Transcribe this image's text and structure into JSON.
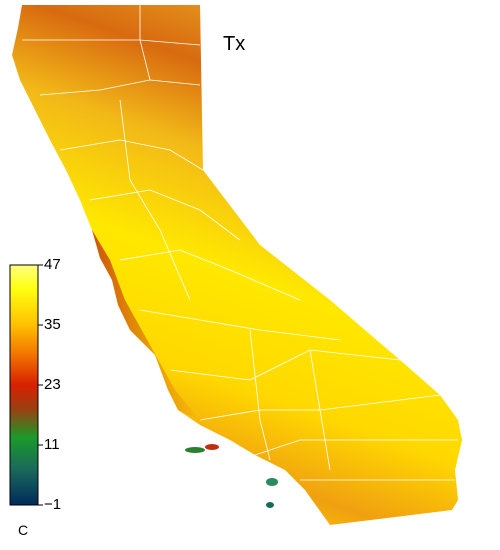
{
  "map": {
    "title": "Tx",
    "colorbar": {
      "lim": [
        -1,
        47
      ],
      "ticks": [
        {
          "value": -1,
          "label": "−1"
        },
        11,
        23,
        35,
        47
      ],
      "unit": "C"
    }
  }
}
